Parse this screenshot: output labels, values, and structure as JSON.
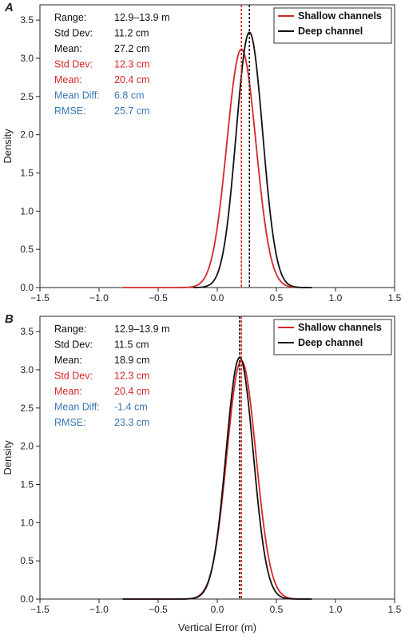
{
  "chart_data": [
    {
      "type": "line",
      "panel_label": "A",
      "xlabel": "",
      "ylabel": "Density",
      "xlim": [
        -1.5,
        1.5
      ],
      "ylim": [
        0,
        3.7
      ],
      "x_ticks": [
        "-1.5",
        "-1.0",
        "-0.5",
        "0.0",
        "0.5",
        "1.0",
        "1.5"
      ],
      "y_ticks": [
        "0.0",
        "0.5",
        "1.0",
        "1.5",
        "2.0",
        "2.5",
        "3.0",
        "3.5"
      ],
      "legend_position": "top-right",
      "series": [
        {
          "name": "Shallow channels",
          "color": "#d62728",
          "mean": 0.204,
          "std": 0.123,
          "peak": 3.12,
          "x_range": [
            -0.8,
            0.8
          ],
          "vline_x": 0.204
        },
        {
          "name": "Deep channel",
          "color": "#111111",
          "mean": 0.272,
          "std": 0.112,
          "peak": 3.34,
          "x_range": [
            -0.2,
            0.8
          ],
          "vline_x": 0.272
        }
      ],
      "stats": [
        {
          "label": "Range:",
          "value": "12.9–13.9 m",
          "color": "#111111"
        },
        {
          "label": "Std Dev:",
          "value": "11.2 cm",
          "color": "#111111"
        },
        {
          "label": "Mean:",
          "value": "27.2 cm",
          "color": "#111111"
        },
        {
          "label": "Std Dev:",
          "value": "12.3 cm",
          "color": "#d62728"
        },
        {
          "label": "Mean:",
          "value": "20.4 cm",
          "color": "#d62728"
        },
        {
          "label": "Mean Diff:",
          "value": "6.8 cm",
          "color": "#3a78b5"
        },
        {
          "label": "RMSE:",
          "value": "25.7 cm",
          "color": "#3a78b5"
        }
      ]
    },
    {
      "type": "line",
      "panel_label": "B",
      "xlabel": "Vertical Error (m)",
      "ylabel": "Density",
      "xlim": [
        -1.5,
        1.5
      ],
      "ylim": [
        0,
        3.7
      ],
      "x_ticks": [
        "-1.5",
        "-1.0",
        "-0.5",
        "0.0",
        "0.5",
        "1.0",
        "1.5"
      ],
      "y_ticks": [
        "0.0",
        "0.5",
        "1.0",
        "1.5",
        "2.0",
        "2.5",
        "3.0",
        "3.5"
      ],
      "legend_position": "top-right",
      "series": [
        {
          "name": "Shallow channels",
          "color": "#d62728",
          "mean": 0.204,
          "std": 0.123,
          "peak": 3.12,
          "x_range": [
            -0.8,
            0.8
          ],
          "vline_x": 0.204
        },
        {
          "name": "Deep channel",
          "color": "#111111",
          "mean": 0.189,
          "std": 0.115,
          "peak": 3.16,
          "x_range": [
            -0.8,
            0.8
          ],
          "vline_x": 0.189
        }
      ],
      "stats": [
        {
          "label": "Range:",
          "value": "12.9–13.9 m",
          "color": "#111111"
        },
        {
          "label": "Std Dev:",
          "value": "11.5 cm",
          "color": "#111111"
        },
        {
          "label": "Mean:",
          "value": "18.9 cm",
          "color": "#111111"
        },
        {
          "label": "Std Dev:",
          "value": "12.3 cm",
          "color": "#d62728"
        },
        {
          "label": "Mean:",
          "value": "20.4 cm",
          "color": "#d62728"
        },
        {
          "label": "Mean Diff:",
          "value": "-1.4 cm",
          "color": "#3a78b5"
        },
        {
          "label": "RMSE:",
          "value": "23.3 cm",
          "color": "#3a78b5"
        }
      ]
    }
  ]
}
